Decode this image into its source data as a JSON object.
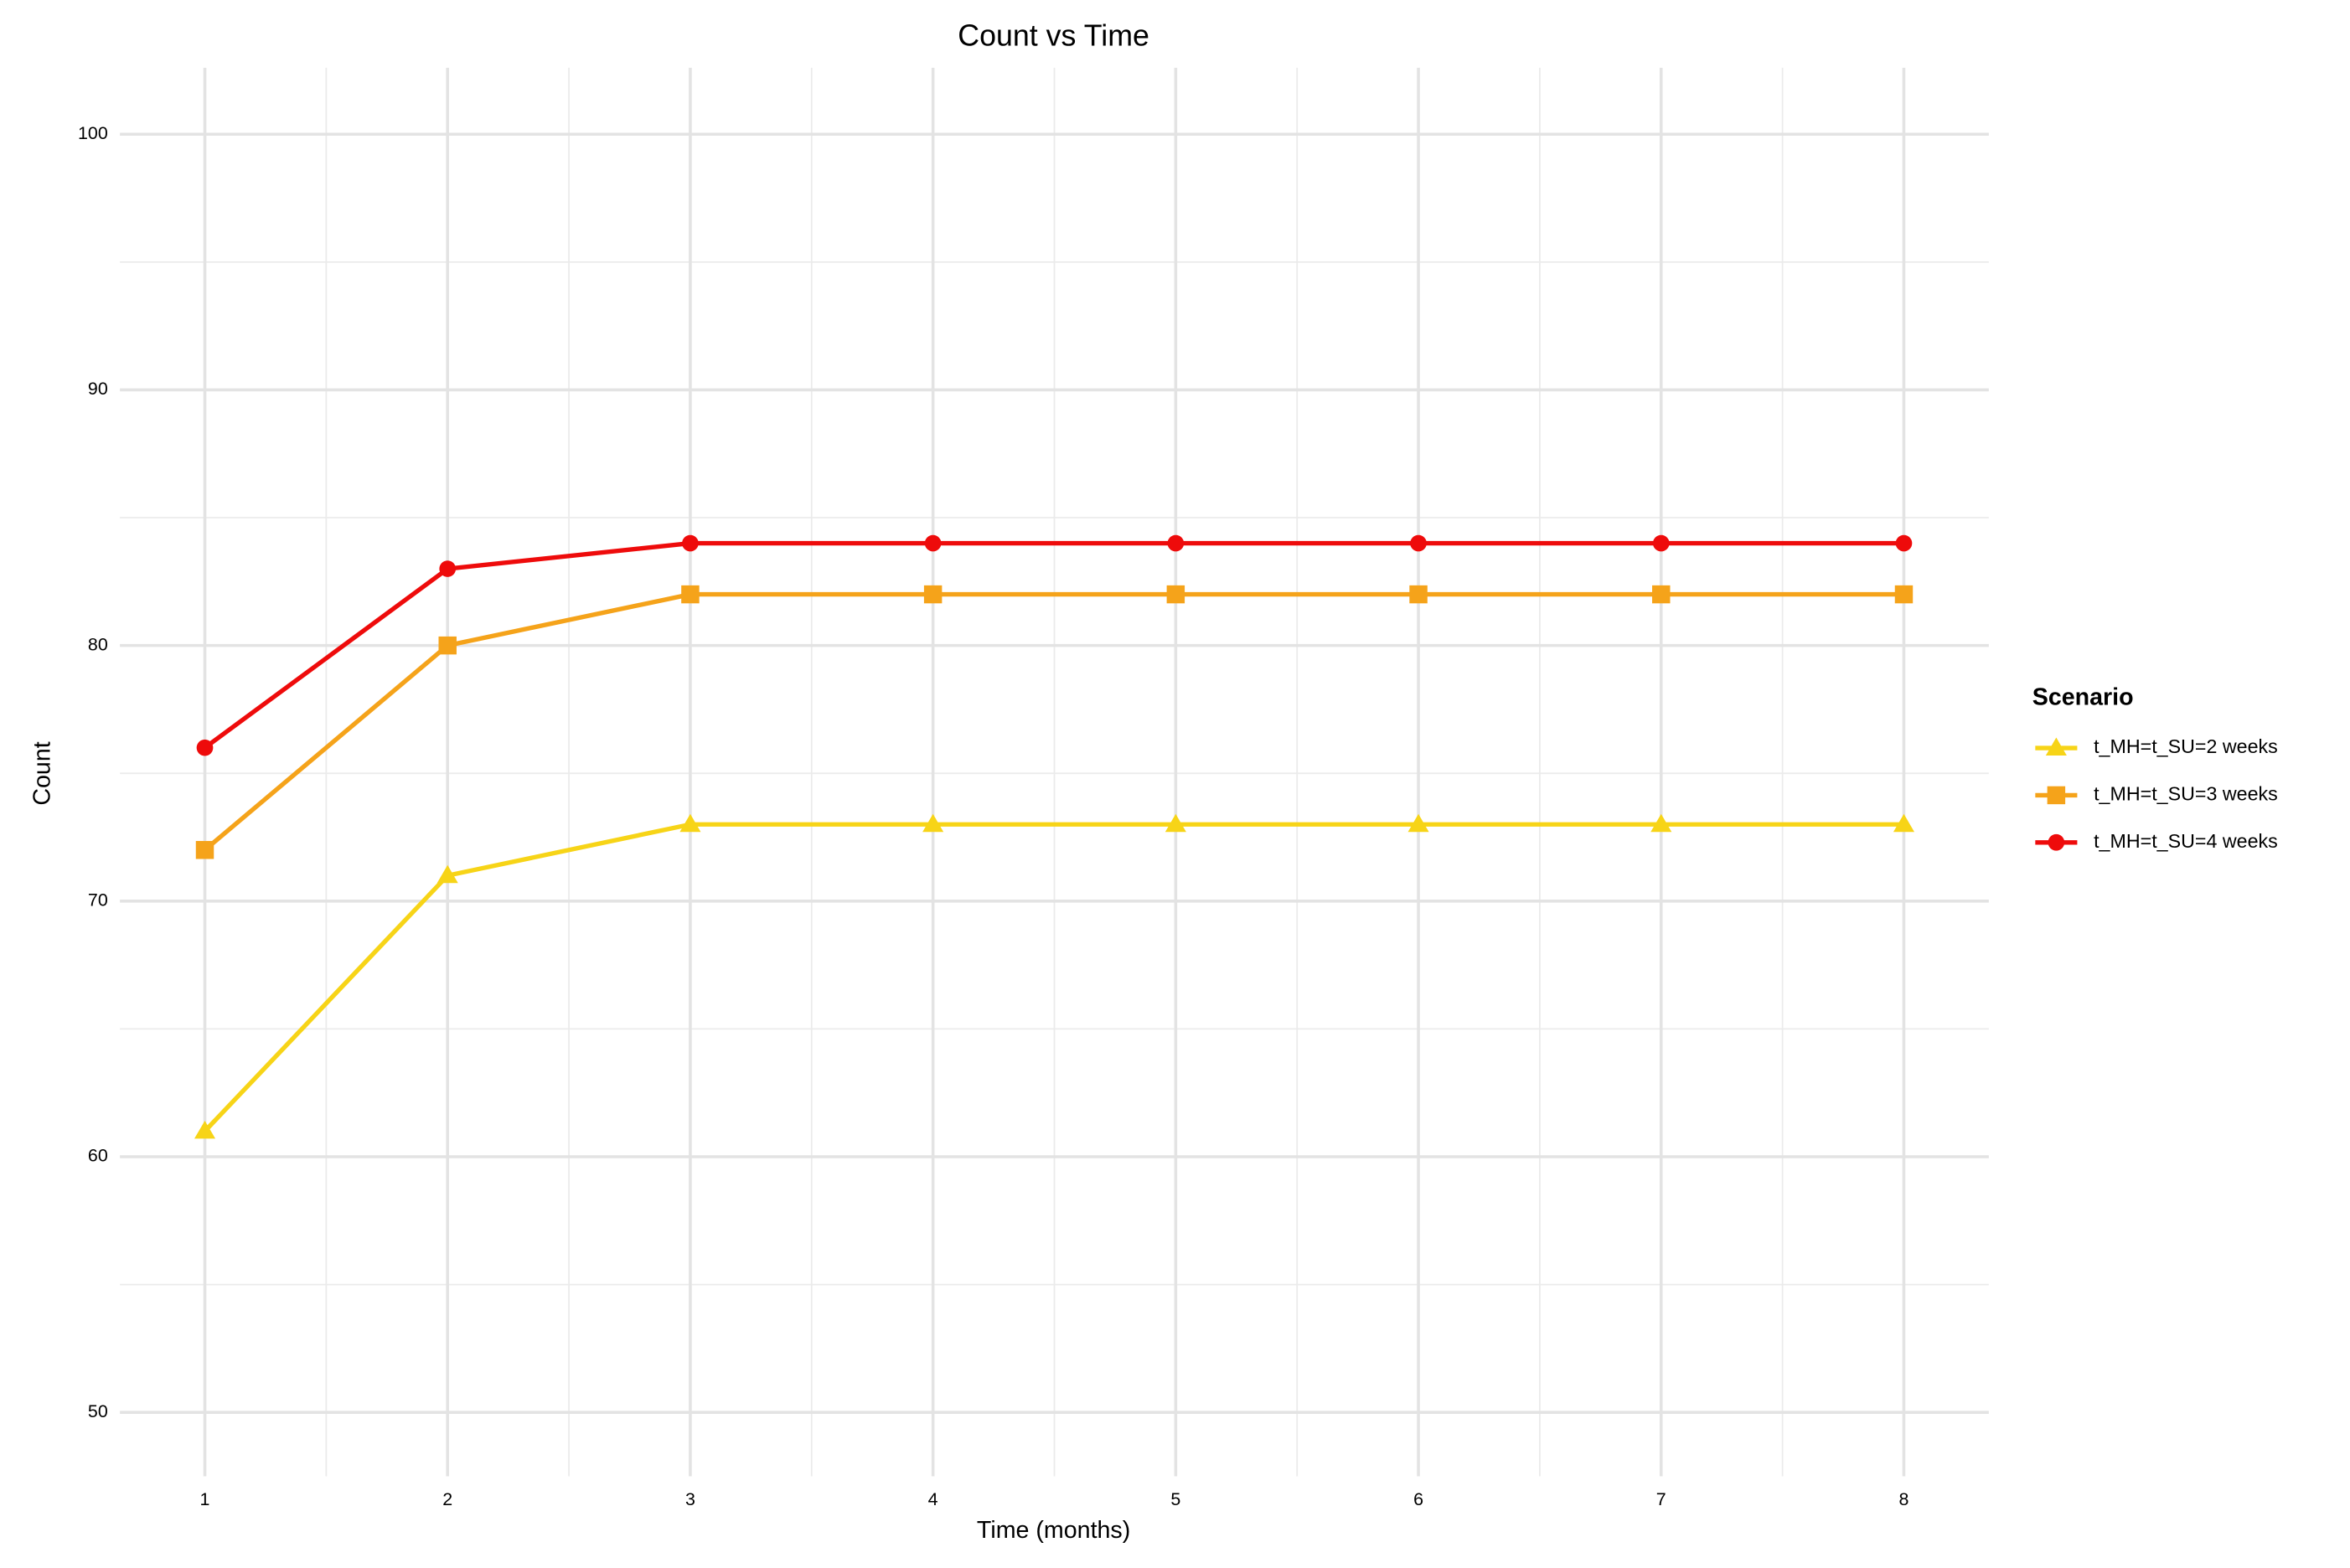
{
  "chart_data": {
    "type": "line",
    "title": "Count vs Time",
    "x_label": "Time (months)",
    "y_label": "Count",
    "x": [
      1,
      2,
      3,
      4,
      5,
      6,
      7,
      8
    ],
    "series": [
      {
        "name": "t_MH=t_SU=2 weeks",
        "color": "#f7d417",
        "marker": "triangle",
        "values": [
          61,
          71,
          73,
          73,
          73,
          73,
          73,
          73
        ]
      },
      {
        "name": "t_MH=t_SU=3 weeks",
        "color": "#f5a31a",
        "marker": "square",
        "values": [
          72,
          80,
          82,
          82,
          82,
          82,
          82,
          82
        ]
      },
      {
        "name": "t_MH=t_SU=4 weeks",
        "color": "#ee0b0b",
        "marker": "circle",
        "values": [
          76,
          83,
          84,
          84,
          84,
          84,
          84,
          84
        ]
      }
    ],
    "xlim": [
      0.65,
      8.35
    ],
    "ylim": [
      47.5,
      102.6
    ],
    "xticks": [
      1,
      2,
      3,
      4,
      5,
      6,
      7,
      8
    ],
    "yticks": [
      50,
      60,
      70,
      80,
      90,
      100
    ],
    "grid": true,
    "legend_title": "Scenario",
    "legend_position": "right"
  }
}
